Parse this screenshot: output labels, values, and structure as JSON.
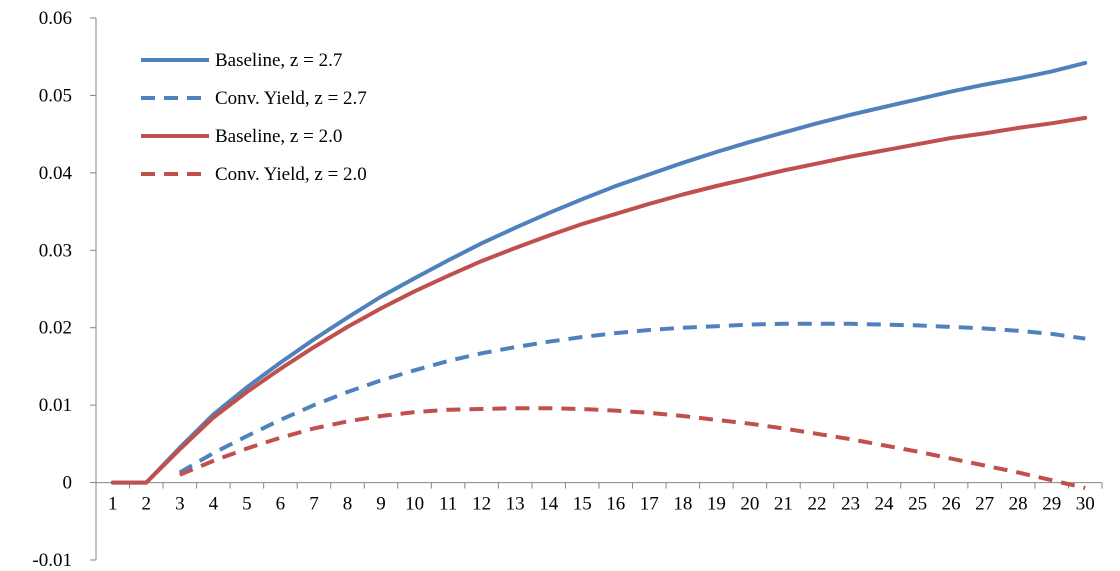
{
  "chart_data": {
    "type": "line",
    "title": "",
    "xlabel": "",
    "ylabel": "",
    "x": [
      1,
      2,
      3,
      4,
      5,
      6,
      7,
      8,
      9,
      10,
      11,
      12,
      13,
      14,
      15,
      16,
      17,
      18,
      19,
      20,
      21,
      22,
      23,
      24,
      25,
      26,
      27,
      28,
      29,
      30
    ],
    "ylim": [
      -0.01,
      0.06
    ],
    "yticks": [
      -0.01,
      0,
      0.01,
      0.02,
      0.03,
      0.04,
      0.05,
      0.06
    ],
    "ytick_labels": [
      "-0.01",
      "0",
      "0.01",
      "0.02",
      "0.03",
      "0.04",
      "0.05",
      "0.06"
    ],
    "grid": false,
    "legend_position": "top-left",
    "series": [
      {
        "name": "Baseline, z = 2.7",
        "color": "#4F81BD",
        "style": "solid",
        "x": [
          1,
          2,
          3,
          4,
          5,
          6,
          7,
          8,
          9,
          10,
          11,
          12,
          13,
          14,
          15,
          16,
          17,
          18,
          19,
          20,
          21,
          22,
          23,
          24,
          25,
          26,
          27,
          28,
          29,
          30
        ],
        "values": [
          0,
          0,
          0.0045,
          0.0088,
          0.0123,
          0.0155,
          0.0185,
          0.0213,
          0.024,
          0.0264,
          0.0287,
          0.0309,
          0.0329,
          0.0348,
          0.0366,
          0.0383,
          0.0398,
          0.0413,
          0.0427,
          0.044,
          0.0452,
          0.0464,
          0.0475,
          0.0485,
          0.0495,
          0.0505,
          0.0514,
          0.0522,
          0.0531,
          0.0542
        ]
      },
      {
        "name": "Conv. Yield, z = 2.7",
        "color": "#4F81BD",
        "style": "dashed",
        "x": [
          3,
          4,
          5,
          6,
          7,
          8,
          9,
          10,
          11,
          12,
          13,
          14,
          15,
          16,
          17,
          18,
          19,
          20,
          21,
          22,
          23,
          24,
          25,
          26,
          27,
          28,
          29,
          30
        ],
        "values": [
          0.0013,
          0.0038,
          0.006,
          0.0081,
          0.01,
          0.0117,
          0.0132,
          0.0145,
          0.0157,
          0.0167,
          0.0175,
          0.0182,
          0.0188,
          0.0193,
          0.0197,
          0.02,
          0.0202,
          0.0204,
          0.0205,
          0.0205,
          0.0205,
          0.0204,
          0.0203,
          0.0201,
          0.0199,
          0.0196,
          0.0192,
          0.0186
        ]
      },
      {
        "name": "Baseline, z = 2.0",
        "color": "#C0504D",
        "style": "solid",
        "x": [
          1,
          2,
          3,
          4,
          5,
          6,
          7,
          8,
          9,
          10,
          11,
          12,
          13,
          14,
          15,
          16,
          17,
          18,
          19,
          20,
          21,
          22,
          23,
          24,
          25,
          26,
          27,
          28,
          29,
          30
        ],
        "values": [
          0,
          0,
          0.0043,
          0.0084,
          0.0117,
          0.0147,
          0.0175,
          0.0201,
          0.0225,
          0.0247,
          0.0267,
          0.0286,
          0.0303,
          0.0319,
          0.0334,
          0.0347,
          0.036,
          0.0372,
          0.0383,
          0.0393,
          0.0403,
          0.0412,
          0.0421,
          0.0429,
          0.0437,
          0.0445,
          0.0451,
          0.0458,
          0.0464,
          0.0471
        ]
      },
      {
        "name": "Conv. Yield, z = 2.0",
        "color": "#C0504D",
        "style": "dashed",
        "x": [
          3,
          4,
          5,
          6,
          7,
          8,
          9,
          10,
          11,
          12,
          13,
          14,
          15,
          16,
          17,
          18,
          19,
          20,
          21,
          22,
          23,
          24,
          25,
          26,
          27,
          28,
          29,
          30
        ],
        "values": [
          0.001,
          0.0028,
          0.0044,
          0.0058,
          0.007,
          0.0079,
          0.0086,
          0.0091,
          0.0094,
          0.0095,
          0.0096,
          0.0096,
          0.0095,
          0.0093,
          0.009,
          0.0086,
          0.0081,
          0.0076,
          0.007,
          0.0063,
          0.0056,
          0.0048,
          0.004,
          0.0031,
          0.0022,
          0.0013,
          0.0003,
          -0.0007
        ]
      }
    ]
  }
}
